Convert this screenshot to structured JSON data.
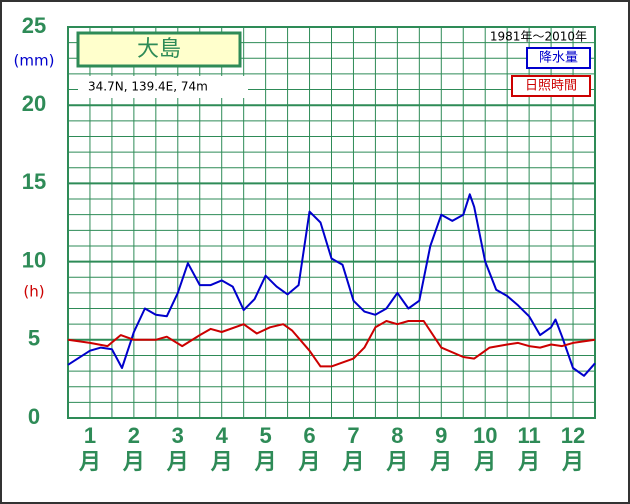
{
  "chart_data": {
    "type": "line",
    "title": "大島",
    "subtitle": "34.7N,  139.4E,  74m",
    "period": "1981年～2010年",
    "y_unit_labels": [
      {
        "text": "(mm)",
        "color": "#0000cc",
        "at": 25
      },
      {
        "text": "(h)",
        "color": "#cc0000",
        "at": 8.2
      }
    ],
    "xlim": [
      0,
      12
    ],
    "ylim": [
      0,
      25
    ],
    "yticks": [
      0,
      5,
      10,
      15,
      20,
      25
    ],
    "ygrid": [
      1,
      2,
      3,
      4,
      6,
      7,
      8,
      9,
      11,
      12,
      13,
      14,
      16,
      17,
      18,
      19,
      21,
      22,
      23,
      24
    ],
    "xgrid": [
      0.5,
      1,
      1.5,
      2,
      2.5,
      3,
      3.5,
      4,
      4.5,
      5,
      5.5,
      6,
      6.5,
      7,
      7.5,
      8,
      8.5,
      9,
      9.5,
      10,
      10.5,
      11,
      11.5
    ],
    "xticks": [
      {
        "value": 0.5,
        "label": "1"
      },
      {
        "value": 1.5,
        "label": "2"
      },
      {
        "value": 2.5,
        "label": "3"
      },
      {
        "value": 3.5,
        "label": "4"
      },
      {
        "value": 4.5,
        "label": "5"
      },
      {
        "value": 5.5,
        "label": "6"
      },
      {
        "value": 6.5,
        "label": "7"
      },
      {
        "value": 7.5,
        "label": "8"
      },
      {
        "value": 8.5,
        "label": "9"
      },
      {
        "value": 9.5,
        "label": "10"
      },
      {
        "value": 10.5,
        "label": "11"
      },
      {
        "value": 11.5,
        "label": "12"
      }
    ],
    "xtick_unit": "月",
    "series": [
      {
        "name": "降水量",
        "color": "#0000cc",
        "x": [
          0,
          0.5,
          0.75,
          1,
          1.23,
          1.5,
          1.75,
          2,
          2.25,
          2.5,
          2.73,
          3,
          3.25,
          3.5,
          3.75,
          4,
          4.25,
          4.5,
          4.75,
          5,
          5.25,
          5.5,
          5.75,
          6,
          6.25,
          6.5,
          6.75,
          7,
          7.25,
          7.5,
          7.75,
          8,
          8.25,
          8.5,
          8.75,
          9,
          9.15,
          9.25,
          9.5,
          9.75,
          10,
          10.25,
          10.5,
          10.75,
          11,
          11.1,
          11.25,
          11.5,
          11.75,
          12
        ],
        "values": [
          3.4,
          4.3,
          4.5,
          4.4,
          3.2,
          5.5,
          7.0,
          6.6,
          6.5,
          8.0,
          9.9,
          8.5,
          8.5,
          8.8,
          8.4,
          6.9,
          7.6,
          9.1,
          8.4,
          7.9,
          8.5,
          13.2,
          12.5,
          10.2,
          9.8,
          7.5,
          6.8,
          6.6,
          7.0,
          8.0,
          7.0,
          7.5,
          11.0,
          13.0,
          12.6,
          13.0,
          14.3,
          13.5,
          10.0,
          8.2,
          7.8,
          7.2,
          6.5,
          5.3,
          5.8,
          6.3,
          5.2,
          3.2,
          2.7,
          3.5
        ]
      },
      {
        "name": "日照時間",
        "color": "#cc0000",
        "x": [
          0,
          0.5,
          0.9,
          1.2,
          1.5,
          2,
          2.25,
          2.6,
          3,
          3.25,
          3.5,
          4,
          4.3,
          4.6,
          4.9,
          5.1,
          5.5,
          5.75,
          6,
          6.5,
          6.75,
          7,
          7.25,
          7.5,
          7.75,
          8.1,
          8.5,
          9,
          9.25,
          9.6,
          10,
          10.25,
          10.5,
          10.75,
          11,
          11.25,
          11.5,
          12
        ],
        "values": [
          5.0,
          4.8,
          4.6,
          5.3,
          5.0,
          5.0,
          5.2,
          4.6,
          5.3,
          5.7,
          5.5,
          6.0,
          5.4,
          5.8,
          6.0,
          5.6,
          4.3,
          3.3,
          3.3,
          3.8,
          4.5,
          5.8,
          6.2,
          6.0,
          6.2,
          6.2,
          4.5,
          3.9,
          3.8,
          4.5,
          4.7,
          4.8,
          4.6,
          4.5,
          4.7,
          4.6,
          4.8,
          5.0
        ]
      }
    ]
  }
}
